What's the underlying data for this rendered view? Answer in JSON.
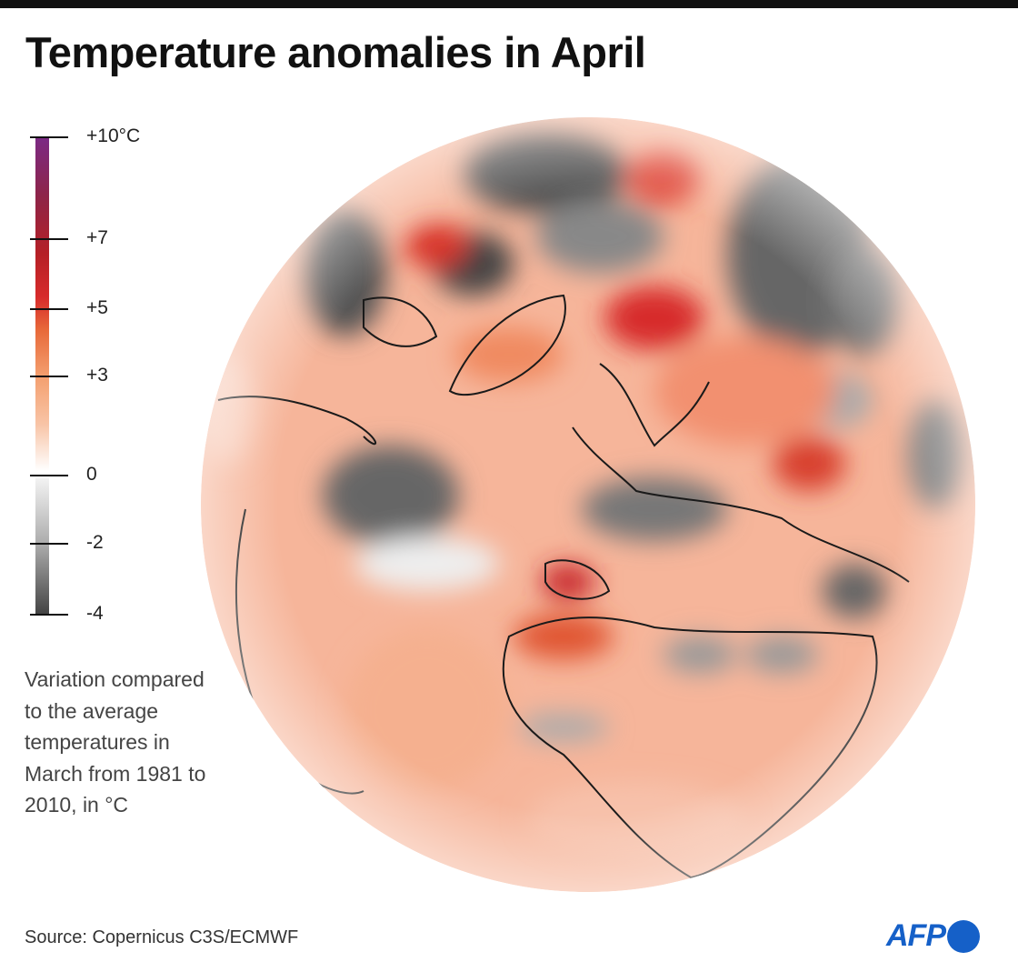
{
  "title": "Temperature anomalies in April",
  "legend": {
    "ticks": [
      {
        "value": 10,
        "label": "+10°C"
      },
      {
        "value": 7,
        "label": "+7"
      },
      {
        "value": 5,
        "label": "+5"
      },
      {
        "value": 3,
        "label": "+3"
      },
      {
        "value": 0,
        "label": "0"
      },
      {
        "value": -2,
        "label": "-2"
      },
      {
        "value": -4,
        "label": "-4"
      }
    ],
    "colors": {
      "max": "#7b2a86",
      "high": "#b52026",
      "mid": "#e86a3a",
      "low": "#f8c4a6",
      "zero": "#ffffff",
      "min": "#444444"
    }
  },
  "caption": "Variation compared to the average temperatures in March from 1981 to 2010, in °C",
  "map": {
    "projection": "orthographic globe centred on the North Atlantic / Arctic",
    "ocean_base_color": "#f6b59a"
  },
  "source": "Source: Copernicus C3S/ECMWF",
  "logo": "AFP"
}
